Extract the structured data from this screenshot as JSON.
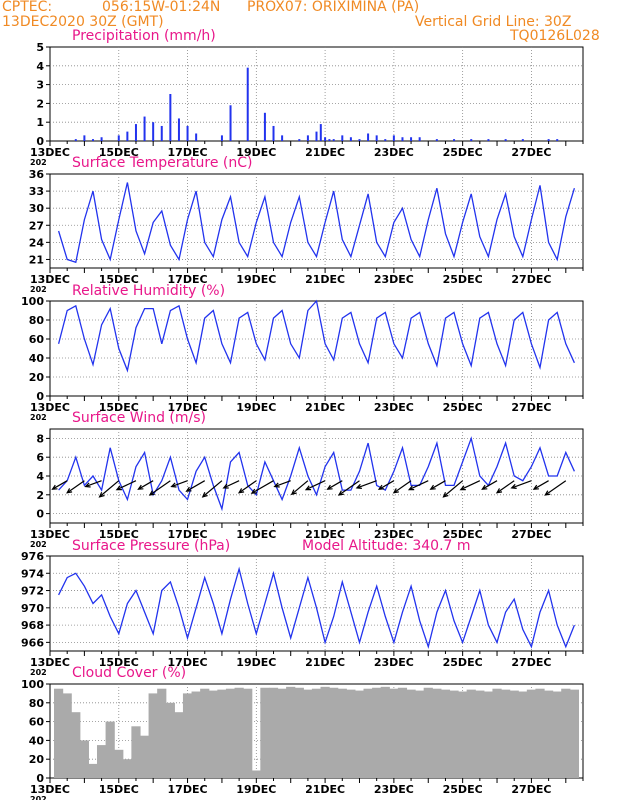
{
  "header": {
    "source": "CPTEC:",
    "location": "056:15W-01:24N",
    "station": "PROX07: ORIXIMINA (PA)",
    "init_time": "13DEC2020 30Z (GMT)",
    "grid_line": "Vertical Grid Line: 30Z",
    "code": "TQ0126L028"
  },
  "colors": {
    "header": "#f08a24",
    "panel_title": "#e8178a",
    "series": "#2233ee",
    "bars": "#2233ee",
    "cloud": "#aaaaaa",
    "wind_arrow": "#000000"
  },
  "x_axis": {
    "tick_labels": [
      "13DEC",
      "15DEC",
      "17DEC",
      "19DEC",
      "21DEC",
      "23DEC",
      "25DEC",
      "27DEC"
    ],
    "year_fragment": "202"
  },
  "chart_data": [
    {
      "type": "bar",
      "title": "Precipitation (mm/h)",
      "ylim": [
        0,
        5
      ],
      "yticks": [
        "0",
        "1",
        "2",
        "3",
        "4",
        "5"
      ],
      "x": [
        "12-13 18Z",
        "12-14 00Z",
        "12-14 06Z",
        "12-14 12Z",
        "12-15 00Z",
        "12-15 06Z",
        "12-15 12Z",
        "12-15 18Z",
        "12-16 00Z",
        "12-16 06Z",
        "12-16 12Z",
        "12-16 18Z",
        "12-17 00Z",
        "12-17 06Z",
        "12-18 00Z",
        "12-18 06Z",
        "12-18 18Z",
        "12-19 06Z",
        "12-19 12Z",
        "12-19 18Z",
        "12-20 06Z",
        "12-20 12Z",
        "12-20 18Z",
        "12-20 21Z",
        "12-21 00Z",
        "12-21 03Z",
        "12-21 06Z",
        "12-21 12Z",
        "12-21 18Z",
        "12-22 00Z",
        "12-22 06Z",
        "12-22 12Z",
        "12-22 18Z",
        "12-23 00Z",
        "12-23 06Z",
        "12-23 12Z",
        "12-23 18Z",
        "12-24 06Z",
        "12-24 18Z",
        "12-25 06Z",
        "12-25 18Z",
        "12-26 06Z",
        "12-26 18Z",
        "12-27 12Z",
        "12-27 18Z"
      ],
      "values": [
        0.1,
        0.3,
        0.1,
        0.2,
        0.3,
        0.5,
        0.9,
        1.3,
        1.0,
        0.8,
        2.5,
        1.2,
        0.8,
        0.4,
        0.3,
        1.9,
        3.9,
        1.5,
        0.8,
        0.3,
        0.1,
        0.3,
        0.5,
        0.9,
        0.2,
        0.1,
        0.1,
        0.3,
        0.2,
        0.1,
        0.4,
        0.3,
        0.1,
        0.3,
        0.2,
        0.2,
        0.2,
        0.1,
        0.1,
        0.1,
        0.1,
        0.1,
        0.1,
        0.1,
        0.1
      ]
    },
    {
      "type": "line",
      "title": "Surface Temperature (nC)",
      "ylim": [
        19.5,
        36
      ],
      "yticks": [
        "21",
        "24",
        "27",
        "30",
        "33",
        "36"
      ],
      "x": [
        "12-13 06Z",
        "12-13 12Z",
        "12-13 18Z",
        "12-14 00Z",
        "12-14 06Z",
        "12-14 12Z",
        "12-14 18Z",
        "12-15 00Z",
        "12-15 06Z",
        "12-15 12Z",
        "12-15 18Z",
        "12-16 00Z",
        "12-16 06Z",
        "12-16 12Z",
        "12-16 18Z",
        "12-17 00Z",
        "12-17 06Z",
        "12-17 12Z",
        "12-17 18Z",
        "12-18 00Z",
        "12-18 06Z",
        "12-18 12Z",
        "12-18 18Z",
        "12-19 00Z",
        "12-19 06Z",
        "12-19 12Z",
        "12-19 18Z",
        "12-20 00Z",
        "12-20 06Z",
        "12-20 12Z",
        "12-20 18Z",
        "12-21 00Z",
        "12-21 06Z",
        "12-21 12Z",
        "12-21 18Z",
        "12-22 00Z",
        "12-22 06Z",
        "12-22 12Z",
        "12-22 18Z",
        "12-23 00Z",
        "12-23 06Z",
        "12-23 12Z",
        "12-23 18Z",
        "12-24 00Z",
        "12-24 06Z",
        "12-24 12Z",
        "12-24 18Z",
        "12-25 00Z",
        "12-25 06Z",
        "12-25 12Z",
        "12-25 18Z",
        "12-26 00Z",
        "12-26 06Z",
        "12-26 12Z",
        "12-26 18Z",
        "12-27 00Z",
        "12-27 06Z",
        "12-27 12Z",
        "12-27 18Z",
        "12-28 00Z",
        "12-28 06Z"
      ],
      "values": [
        26.0,
        21.0,
        20.5,
        28.0,
        33.0,
        24.5,
        21.0,
        28.0,
        34.5,
        26.0,
        22.0,
        27.5,
        29.5,
        23.5,
        21.0,
        28.0,
        33.0,
        24.0,
        21.5,
        28.0,
        32.0,
        24.0,
        21.5,
        27.5,
        32.0,
        24.0,
        21.5,
        27.5,
        32.0,
        24.0,
        21.5,
        27.5,
        33.0,
        24.5,
        21.5,
        27.0,
        32.5,
        24.0,
        21.5,
        27.5,
        30.0,
        24.5,
        21.5,
        28.0,
        33.5,
        25.5,
        21.5,
        27.5,
        32.5,
        25.0,
        21.5,
        28.0,
        32.5,
        25.0,
        21.5,
        28.0,
        34.0,
        24.0,
        21.0,
        28.5,
        33.5
      ]
    },
    {
      "type": "line",
      "title": "Relative Humidity (%)",
      "ylim": [
        0,
        100
      ],
      "yticks": [
        "0",
        "20",
        "40",
        "60",
        "80",
        "100"
      ],
      "x": [
        "12-13 06Z",
        "12-13 12Z",
        "12-13 18Z",
        "12-14 00Z",
        "12-14 06Z",
        "12-14 12Z",
        "12-14 18Z",
        "12-15 00Z",
        "12-15 06Z",
        "12-15 12Z",
        "12-15 18Z",
        "12-16 00Z",
        "12-16 06Z",
        "12-16 12Z",
        "12-16 18Z",
        "12-17 00Z",
        "12-17 06Z",
        "12-17 12Z",
        "12-17 18Z",
        "12-18 00Z",
        "12-18 06Z",
        "12-18 12Z",
        "12-18 18Z",
        "12-19 00Z",
        "12-19 06Z",
        "12-19 12Z",
        "12-19 18Z",
        "12-20 00Z",
        "12-20 06Z",
        "12-20 12Z",
        "12-20 18Z",
        "12-21 00Z",
        "12-21 06Z",
        "12-21 12Z",
        "12-21 18Z",
        "12-22 00Z",
        "12-22 06Z",
        "12-22 12Z",
        "12-22 18Z",
        "12-23 00Z",
        "12-23 06Z",
        "12-23 12Z",
        "12-23 18Z",
        "12-24 00Z",
        "12-24 06Z",
        "12-24 12Z",
        "12-24 18Z",
        "12-25 00Z",
        "12-25 06Z",
        "12-25 12Z",
        "12-25 18Z",
        "12-26 00Z",
        "12-26 06Z",
        "12-26 12Z",
        "12-26 18Z",
        "12-27 00Z",
        "12-27 06Z",
        "12-27 12Z",
        "12-27 18Z",
        "12-28 00Z",
        "12-28 06Z"
      ],
      "values": [
        55,
        90,
        95,
        60,
        33,
        75,
        92,
        50,
        27,
        72,
        92,
        92,
        55,
        90,
        95,
        60,
        35,
        82,
        90,
        55,
        35,
        82,
        88,
        55,
        38,
        82,
        90,
        55,
        40,
        90,
        100,
        55,
        38,
        82,
        88,
        55,
        35,
        82,
        88,
        55,
        40,
        82,
        88,
        55,
        32,
        82,
        88,
        55,
        32,
        82,
        88,
        55,
        32,
        80,
        88,
        55,
        30,
        80,
        88,
        55,
        35
      ]
    },
    {
      "type": "line",
      "title": "Surface Wind (m/s)",
      "ylim": [
        -1,
        9
      ],
      "yticks": [
        "0",
        "2",
        "4",
        "6",
        "8"
      ],
      "x": [
        "12-13 06Z",
        "12-13 12Z",
        "12-13 18Z",
        "12-14 00Z",
        "12-14 06Z",
        "12-14 12Z",
        "12-14 18Z",
        "12-15 00Z",
        "12-15 06Z",
        "12-15 12Z",
        "12-15 18Z",
        "12-16 00Z",
        "12-16 06Z",
        "12-16 12Z",
        "12-16 18Z",
        "12-17 00Z",
        "12-17 06Z",
        "12-17 12Z",
        "12-17 18Z",
        "12-18 00Z",
        "12-18 06Z",
        "12-18 12Z",
        "12-18 18Z",
        "12-19 00Z",
        "12-19 06Z",
        "12-19 12Z",
        "12-19 18Z",
        "12-20 00Z",
        "12-20 06Z",
        "12-20 12Z",
        "12-20 18Z",
        "12-21 00Z",
        "12-21 06Z",
        "12-21 12Z",
        "12-21 18Z",
        "12-22 00Z",
        "12-22 06Z",
        "12-22 12Z",
        "12-22 18Z",
        "12-23 00Z",
        "12-23 06Z",
        "12-23 12Z",
        "12-23 18Z",
        "12-24 00Z",
        "12-24 06Z",
        "12-24 12Z",
        "12-24 18Z",
        "12-25 00Z",
        "12-25 06Z",
        "12-25 12Z",
        "12-25 18Z",
        "12-26 00Z",
        "12-26 06Z",
        "12-26 12Z",
        "12-26 18Z",
        "12-27 00Z",
        "12-27 06Z",
        "12-27 12Z",
        "12-27 18Z",
        "12-28 00Z",
        "12-28 06Z"
      ],
      "values": [
        2.5,
        3.5,
        6.0,
        3.0,
        4.0,
        2.5,
        7.0,
        3.5,
        1.5,
        5.0,
        6.5,
        2.0,
        3.5,
        6.0,
        2.5,
        1.5,
        4.5,
        6.0,
        3.0,
        0.5,
        5.5,
        6.5,
        3.0,
        2.0,
        5.5,
        3.5,
        1.5,
        4.0,
        7.0,
        4.0,
        2.0,
        5.0,
        6.5,
        2.5,
        2.5,
        4.5,
        7.5,
        3.0,
        2.5,
        4.5,
        7.0,
        3.0,
        3.0,
        5.0,
        7.5,
        3.0,
        3.0,
        5.5,
        8.0,
        4.0,
        3.0,
        5.0,
        7.5,
        4.0,
        3.5,
        5.0,
        7.0,
        4.0,
        4.0,
        6.5,
        4.5
      ],
      "arrows": {
        "x": [
          "12-13 12Z",
          "12-14 00Z",
          "12-14 12Z",
          "12-15 00Z",
          "12-15 12Z",
          "12-16 00Z",
          "12-16 12Z",
          "12-17 00Z",
          "12-17 12Z",
          "12-18 00Z",
          "12-18 12Z",
          "12-19 00Z",
          "12-19 12Z",
          "12-20 00Z",
          "12-20 12Z",
          "12-21 00Z",
          "12-21 12Z",
          "12-22 00Z",
          "12-22 12Z",
          "12-23 00Z",
          "12-23 12Z",
          "12-24 00Z",
          "12-24 12Z",
          "12-25 00Z",
          "12-25 12Z",
          "12-26 00Z",
          "12-26 12Z",
          "12-27 00Z",
          "12-27 12Z",
          "12-28 00Z"
        ],
        "speed": [
          3,
          4,
          3,
          5,
          4,
          3,
          5,
          3,
          4,
          5,
          3,
          4,
          5,
          3,
          4,
          4,
          3,
          5,
          4,
          3,
          4,
          4,
          3,
          5,
          4,
          3,
          4,
          4,
          3,
          5
        ],
        "bearing_deg": [
          240,
          235,
          250,
          230,
          245,
          240,
          235,
          250,
          240,
          230,
          245,
          235,
          240,
          250,
          230,
          245,
          240,
          235,
          250,
          240,
          235,
          245,
          240,
          230,
          245,
          240,
          235,
          250,
          240,
          235
        ]
      }
    },
    {
      "type": "line",
      "title": "Surface Pressure (hPa)",
      "annotation": "Model Altitude: 340.7 m",
      "ylim": [
        965,
        976
      ],
      "yticks": [
        "966",
        "968",
        "970",
        "972",
        "974",
        "976"
      ],
      "x": [
        "12-13 06Z",
        "12-13 12Z",
        "12-13 18Z",
        "12-14 00Z",
        "12-14 06Z",
        "12-14 12Z",
        "12-14 18Z",
        "12-15 00Z",
        "12-15 06Z",
        "12-15 12Z",
        "12-15 18Z",
        "12-16 00Z",
        "12-16 06Z",
        "12-16 12Z",
        "12-16 18Z",
        "12-17 00Z",
        "12-17 06Z",
        "12-17 12Z",
        "12-17 18Z",
        "12-18 00Z",
        "12-18 06Z",
        "12-18 12Z",
        "12-18 18Z",
        "12-19 00Z",
        "12-19 06Z",
        "12-19 12Z",
        "12-19 18Z",
        "12-20 00Z",
        "12-20 06Z",
        "12-20 12Z",
        "12-20 18Z",
        "12-21 00Z",
        "12-21 06Z",
        "12-21 12Z",
        "12-21 18Z",
        "12-22 00Z",
        "12-22 06Z",
        "12-22 12Z",
        "12-22 18Z",
        "12-23 00Z",
        "12-23 06Z",
        "12-23 12Z",
        "12-23 18Z",
        "12-24 00Z",
        "12-24 06Z",
        "12-24 12Z",
        "12-24 18Z",
        "12-25 00Z",
        "12-25 06Z",
        "12-25 12Z",
        "12-25 18Z",
        "12-26 00Z",
        "12-26 06Z",
        "12-26 12Z",
        "12-26 18Z",
        "12-27 00Z",
        "12-27 06Z",
        "12-27 12Z",
        "12-27 18Z",
        "12-28 00Z",
        "12-28 06Z"
      ],
      "values": [
        971.5,
        973.5,
        974.0,
        972.5,
        970.5,
        971.5,
        969.0,
        967.0,
        970.5,
        972.0,
        969.5,
        967.0,
        972.0,
        973.0,
        970.0,
        966.5,
        970.0,
        973.5,
        970.5,
        967.0,
        971.0,
        974.5,
        970.5,
        967.0,
        970.5,
        974.0,
        970.0,
        966.5,
        970.0,
        973.5,
        970.0,
        966.0,
        969.0,
        973.0,
        969.5,
        966.0,
        969.5,
        972.5,
        969.0,
        966.0,
        969.5,
        972.5,
        968.5,
        965.5,
        969.5,
        972.0,
        968.5,
        966.0,
        969.0,
        972.0,
        968.0,
        966.0,
        969.5,
        971.0,
        967.5,
        965.5,
        969.5,
        972.0,
        968.0,
        965.5,
        968.0
      ]
    },
    {
      "type": "bar",
      "title": "Cloud Cover (%)",
      "ylim": [
        0,
        100
      ],
      "yticks": [
        "0",
        "20",
        "40",
        "60",
        "80",
        "100"
      ],
      "x": [
        "12-13 06Z",
        "12-13 12Z",
        "12-13 18Z",
        "12-14 00Z",
        "12-14 06Z",
        "12-14 12Z",
        "12-14 18Z",
        "12-15 00Z",
        "12-15 06Z",
        "12-15 12Z",
        "12-15 18Z",
        "12-16 00Z",
        "12-16 06Z",
        "12-16 12Z",
        "12-16 18Z",
        "12-17 00Z",
        "12-17 06Z",
        "12-17 12Z",
        "12-17 18Z",
        "12-18 00Z",
        "12-18 06Z",
        "12-18 12Z",
        "12-18 18Z",
        "12-19 00Z",
        "12-19 06Z",
        "12-19 12Z",
        "12-19 18Z",
        "12-20 00Z",
        "12-20 06Z",
        "12-20 12Z",
        "12-20 18Z",
        "12-21 00Z",
        "12-21 06Z",
        "12-21 12Z",
        "12-21 18Z",
        "12-22 00Z",
        "12-22 06Z",
        "12-22 12Z",
        "12-22 18Z",
        "12-23 00Z",
        "12-23 06Z",
        "12-23 12Z",
        "12-23 18Z",
        "12-24 00Z",
        "12-24 06Z",
        "12-24 12Z",
        "12-24 18Z",
        "12-25 00Z",
        "12-25 06Z",
        "12-25 12Z",
        "12-25 18Z",
        "12-26 00Z",
        "12-26 06Z",
        "12-26 12Z",
        "12-26 18Z",
        "12-27 00Z",
        "12-27 06Z",
        "12-27 12Z",
        "12-27 18Z",
        "12-28 00Z",
        "12-28 06Z"
      ],
      "values": [
        95,
        90,
        70,
        40,
        15,
        35,
        60,
        30,
        20,
        55,
        45,
        90,
        95,
        80,
        70,
        90,
        92,
        95,
        93,
        94,
        95,
        96,
        95,
        8,
        96,
        96,
        95,
        97,
        96,
        94,
        95,
        97,
        96,
        95,
        94,
        93,
        95,
        96,
        97,
        95,
        96,
        94,
        93,
        96,
        95,
        94,
        93,
        92,
        94,
        93,
        92,
        95,
        94,
        93,
        92,
        94,
        95,
        93,
        92,
        95,
        94
      ]
    }
  ]
}
